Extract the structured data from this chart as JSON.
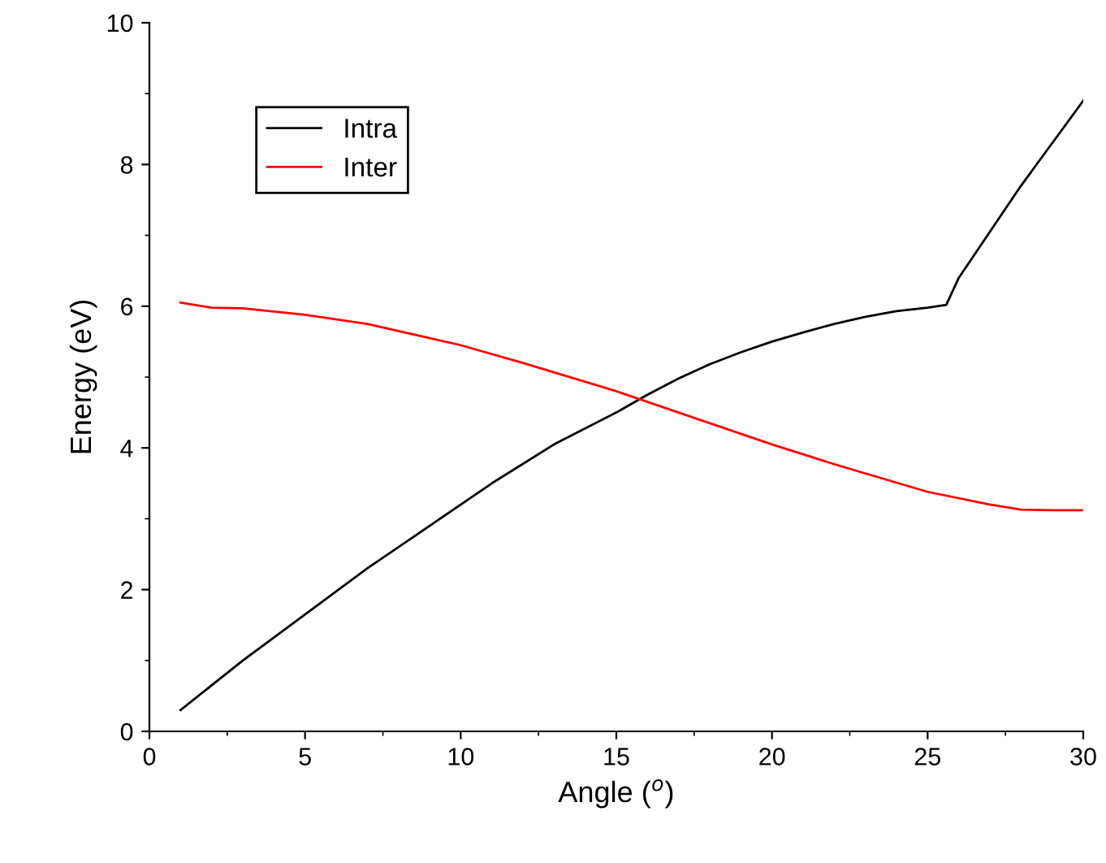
{
  "chart_data": {
    "type": "line",
    "xlabel": "Angle ($^{o}$)",
    "ylabel": "Energy (eV)",
    "xlim": [
      0,
      30
    ],
    "ylim": [
      0,
      10
    ],
    "xticks": [
      0,
      5,
      10,
      15,
      20,
      25,
      30
    ],
    "yticks": [
      0,
      2,
      4,
      6,
      8,
      10
    ],
    "grid": false,
    "legend": "top left",
    "marker": "none",
    "line_style": "solid",
    "series": [
      {
        "name": "Intra",
        "color": "#000000",
        "x": [
          1,
          3,
          5,
          7,
          9,
          11,
          13,
          15,
          16,
          17,
          18,
          19,
          20,
          21,
          22,
          23,
          24,
          25,
          25.6,
          26,
          27,
          28,
          29,
          30
        ],
        "values": [
          0.3,
          1.0,
          1.65,
          2.3,
          2.9,
          3.5,
          4.05,
          4.5,
          4.75,
          4.98,
          5.18,
          5.35,
          5.5,
          5.63,
          5.75,
          5.85,
          5.93,
          5.98,
          6.02,
          6.4,
          7.05,
          7.7,
          8.3,
          8.9
        ]
      },
      {
        "name": "Inter",
        "color": "#ff0000",
        "x": [
          1,
          2,
          3,
          5,
          7,
          10,
          12,
          15,
          17,
          20,
          22,
          25,
          27,
          28,
          29,
          30
        ],
        "values": [
          6.05,
          5.98,
          5.97,
          5.88,
          5.75,
          5.45,
          5.2,
          4.8,
          4.5,
          4.05,
          3.77,
          3.38,
          3.2,
          3.13,
          3.12,
          3.12
        ]
      }
    ]
  }
}
